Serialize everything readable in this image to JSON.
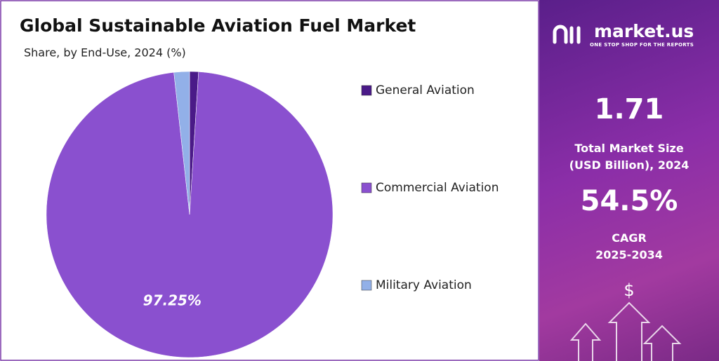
{
  "chart_data": {
    "type": "pie",
    "title": "Global Sustainable Aviation Fuel Market",
    "subtitle": "Share, by End-Use, 2024 (%)",
    "categories": [
      "General Aviation",
      "Commercial Aviation",
      "Military Aviation"
    ],
    "values": [
      1.0,
      97.25,
      1.75
    ],
    "value_labels": [
      null,
      "97.25%",
      null
    ],
    "colors": [
      "#4a1a88",
      "#8a50cf",
      "#92b0e8"
    ]
  },
  "panel": {
    "brand": "market.us",
    "tagline": "ONE STOP SHOP FOR THE REPORTS",
    "market_size": "1.71",
    "market_size_label": [
      "Total Market Size",
      "(USD Billion), 2024"
    ],
    "cagr": "54.5%",
    "cagr_label": [
      "CAGR",
      "2025-2034"
    ]
  }
}
